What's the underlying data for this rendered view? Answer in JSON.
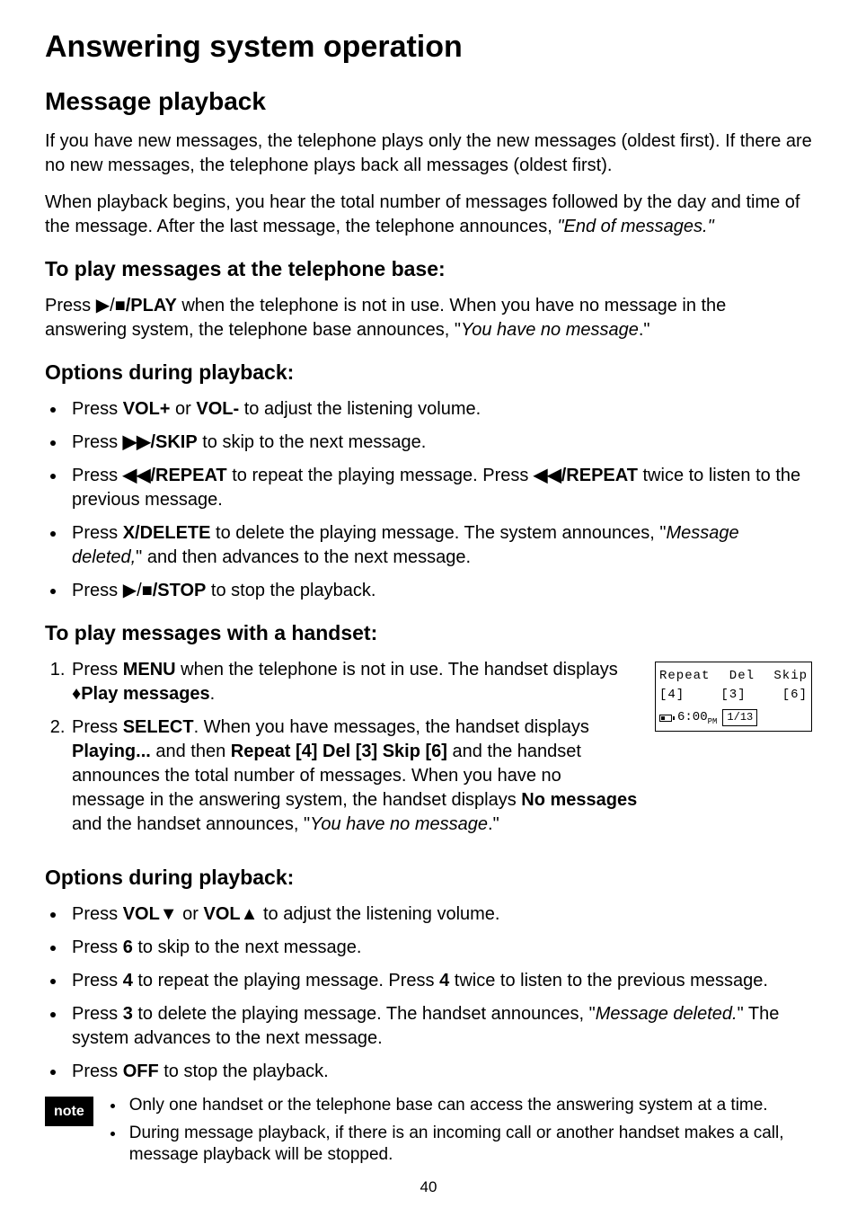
{
  "page": {
    "h1": "Answering system operation",
    "h2": "Message playback",
    "intro1": "If you have new messages, the telephone plays only the new messages (oldest first). If there are no new messages, the telephone plays back all messages (oldest first).",
    "intro2": "When playback begins, you hear the total number of messages followed by the day and time of the message. After the last message, the telephone announces, ",
    "intro2_quote": "\"End of messages.\"",
    "h3_base": "To play messages at the telephone base:",
    "base_p1_a": "Press ",
    "base_p1_glyph": "▶/■",
    "base_p1_b": "/PLAY",
    "base_p1_c": " when the telephone is not in use. When you have no message in the answering system, the telephone base announces, \"",
    "base_p1_italic": "You have no message",
    "base_p1_d": ".\"",
    "h3_opts1": "Options during playback:",
    "opts1": {
      "i1_a": "Press ",
      "i1_b1": "VOL+",
      "i1_mid": " or ",
      "i1_b2": "VOL-",
      "i1_c": " to adjust the listening volume.",
      "i2_a": "Press ",
      "i2_b": "▶▶/SKIP",
      "i2_c": " to skip to the next message.",
      "i3_a": "Press ",
      "i3_b": "◀◀/REPEAT",
      "i3_c": " to repeat the playing message. Press ",
      "i3_d": "◀◀/REPEAT",
      "i3_e": " twice to listen to the previous message.",
      "i4_a": "Press ",
      "i4_b": "X/DELETE",
      "i4_c": " to delete the playing message. The system announces, \"",
      "i4_italic": "Message deleted,",
      "i4_d": "\" and then advances to the next message.",
      "i5_a": "Press ",
      "i5_glyph": "▶/■",
      "i5_b": "/STOP",
      "i5_c": " to stop the playback."
    },
    "h3_handset": "To play messages with a handset:",
    "hs1_a": "Press ",
    "hs1_b": "MENU",
    "hs1_c": " when the telephone is not in use. The handset displays ",
    "hs1_glyph": "♦",
    "hs1_d": "Play messages",
    "hs1_e": ".",
    "hs2_a": "Press ",
    "hs2_b": "SELECT",
    "hs2_c": ". When you have messages, the handset displays ",
    "hs2_d": "Playing...",
    "hs2_e": " and then ",
    "hs2_f": "Repeat [4] Del [3] Skip [6]",
    "hs2_g": " and the handset announces the total number of messages. When you have no message in the answering system, the handset displays ",
    "hs2_h": "No messages",
    "hs2_i": " and the handset announces, \"",
    "hs2_italic": "You have no message",
    "hs2_j": ".\"",
    "lcd": {
      "row1": {
        "repeat": "Repeat",
        "del": "Del",
        "skip": "Skip"
      },
      "row2": {
        "c4": "[4]",
        "c3": "[3]",
        "c6": "[6]"
      },
      "time": "6:00",
      "ampm": "PM",
      "date": "1/13"
    },
    "h3_opts2": "Options during playback:",
    "opts2": {
      "i1_a": "Press ",
      "i1_b": "VOL▼",
      "i1_mid": " or ",
      "i1_c": "VOL▲",
      "i1_d": " to adjust the listening volume.",
      "i2_a": "Press ",
      "i2_b": "6",
      "i2_c": " to skip to the next message.",
      "i3_a": "Press ",
      "i3_b": "4",
      "i3_c": " to repeat the playing message. Press ",
      "i3_d": "4",
      "i3_e": " twice to listen to the previous message.",
      "i4_a": "Press ",
      "i4_b": "3",
      "i4_c": " to delete the playing message. The handset announces, \"",
      "i4_italic": "Message deleted.",
      "i4_d": "\" The system advances to the next message.",
      "i5_a": "Press ",
      "i5_b": "OFF",
      "i5_c": " to stop the playback."
    },
    "note_label": "note",
    "notes": {
      "n1": "Only one handset or the telephone base can access the answering system at a time.",
      "n2": "During message playback, if there is an incoming call or another handset makes a call, message playback will be stopped."
    },
    "pagenum": "40"
  }
}
